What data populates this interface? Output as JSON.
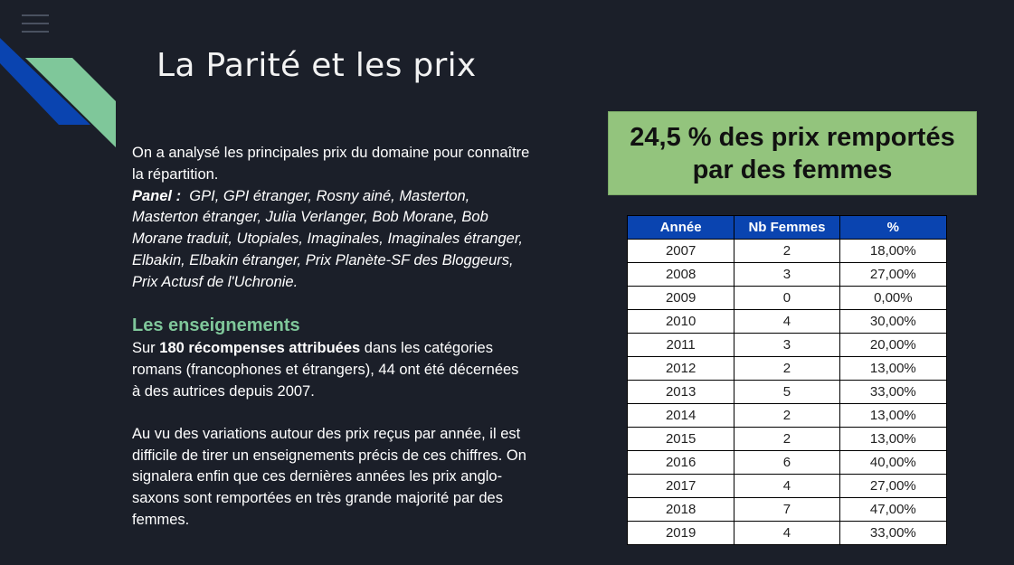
{
  "slide": {
    "title": "La Parité et les prix"
  },
  "colors": {
    "background": "#1b1f29",
    "accent_blue": "#0a44b0",
    "accent_green": "#7fc79a",
    "highlight_box": "#93c47d"
  },
  "icons": {
    "menu": "hamburger-menu-icon"
  },
  "intro": {
    "line1": "On a analysé les principales prix du domaine pour connaître la répartition.",
    "panel_label": "Panel :",
    "panel_list": "GPI, GPI étranger, Rosny ainé, Masterton, Masterton étranger, Julia Verlanger, Bob Morane, Bob Morane traduit, Utopiales, Imaginales, Imaginales étranger, Elbakin,  Elbakin étranger, Prix Planète-SF des Bloggeurs, Prix Actusf de l'Uchronie."
  },
  "lessons": {
    "heading": "Les enseignements",
    "p1_before": "Sur ",
    "p1_bold": "180  récompenses attribuées",
    "p1_after": " dans les catégories romans (francophones et étrangers), 44 ont été décernées à des autrices depuis 2007.",
    "p2": "Au vu des variations autour des prix reçus par année, il est difficile de tirer un enseignements précis de ces chiffres. On signalera enfin que ces dernières années les prix anglo-saxons sont remportées en très grande majorité par des femmes."
  },
  "highlight": {
    "line1": "24,5 % des prix remportés",
    "line2": "par des femmes"
  },
  "table": {
    "headers": [
      "Année",
      "Nb Femmes",
      "%"
    ],
    "rows": [
      [
        "2007",
        "2",
        "18,00%"
      ],
      [
        "2008",
        "3",
        "27,00%"
      ],
      [
        "2009",
        "0",
        "0,00%"
      ],
      [
        "2010",
        "4",
        "30,00%"
      ],
      [
        "2011",
        "3",
        "20,00%"
      ],
      [
        "2012",
        "2",
        "13,00%"
      ],
      [
        "2013",
        "5",
        "33,00%"
      ],
      [
        "2014",
        "2",
        "13,00%"
      ],
      [
        "2015",
        "2",
        "13,00%"
      ],
      [
        "2016",
        "6",
        "40,00%"
      ],
      [
        "2017",
        "4",
        "27,00%"
      ],
      [
        "2018",
        "7",
        "47,00%"
      ],
      [
        "2019",
        "4",
        "33,00%"
      ]
    ]
  }
}
